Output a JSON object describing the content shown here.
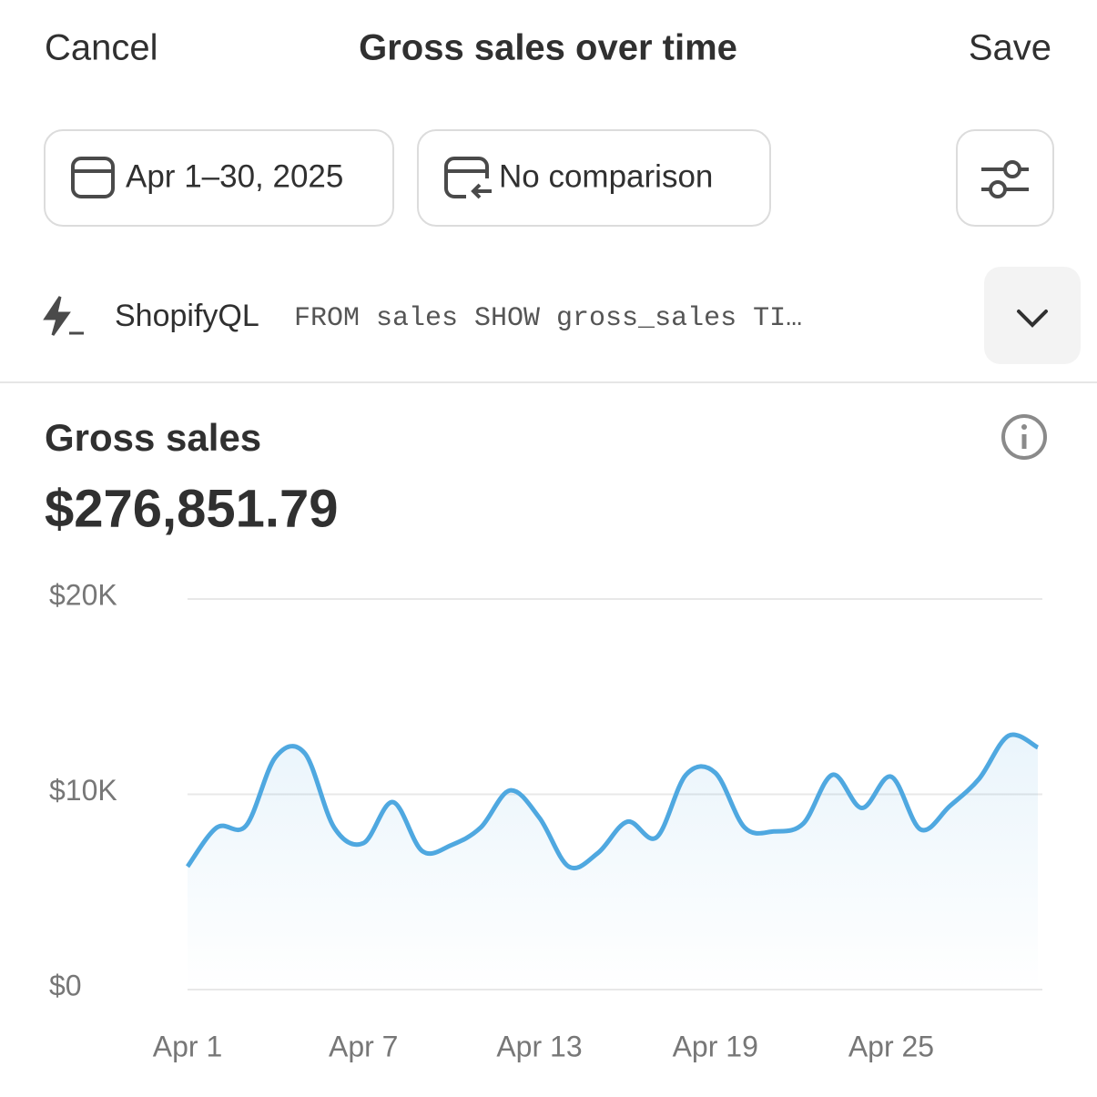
{
  "header": {
    "cancel": "Cancel",
    "title": "Gross sales over time",
    "save": "Save"
  },
  "filters": {
    "date_range": "Apr 1–30, 2025",
    "comparison": "No comparison"
  },
  "query": {
    "label": "ShopifyQL",
    "text": "FROM sales SHOW gross_sales TI…"
  },
  "chart_data": {
    "type": "line",
    "title": "Gross sales",
    "total": "$276,851.79",
    "categories": [
      "Apr 1",
      null,
      null,
      null,
      null,
      null,
      "Apr 7",
      null,
      null,
      null,
      null,
      null,
      "Apr 13",
      null,
      null,
      null,
      null,
      null,
      "Apr 19",
      null,
      null,
      null,
      null,
      null,
      "Apr 25",
      null,
      null,
      null,
      null,
      null
    ],
    "series": [
      {
        "name": "Gross sales",
        "color": "#4fa8e0",
        "values": [
          6300,
          8300,
          8400,
          11900,
          12100,
          8300,
          7500,
          9600,
          7100,
          7400,
          8300,
          10200,
          8800,
          6300,
          7000,
          8600,
          7800,
          11000,
          11100,
          8300,
          8100,
          8500,
          11000,
          9300,
          10900,
          8200,
          9400,
          10800,
          13000,
          12400
        ]
      }
    ],
    "ylim": [
      0,
      20000
    ],
    "yticks": [
      {
        "value": 0,
        "label": "$0"
      },
      {
        "value": 10000,
        "label": "$10K"
      },
      {
        "value": 20000,
        "label": "$20K"
      }
    ],
    "grid": true
  }
}
